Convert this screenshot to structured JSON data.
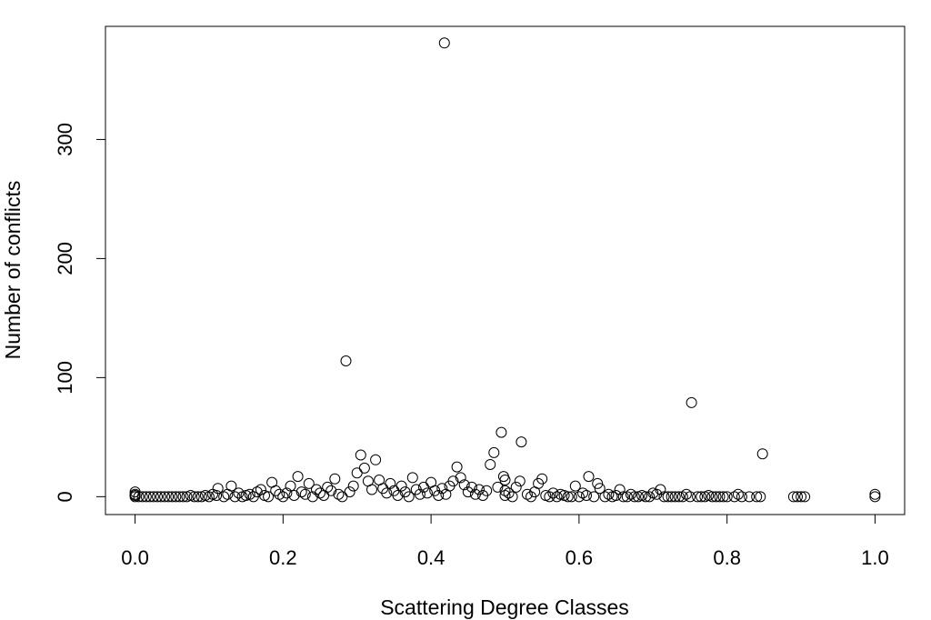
{
  "chart_data": {
    "type": "scatter",
    "title": "",
    "xlabel": "Scattering Degree Classes",
    "ylabel": "Number of conflicts",
    "xlim": [
      -0.04,
      1.04
    ],
    "ylim": [
      -15,
      395
    ],
    "x_ticks": [
      0.0,
      0.2,
      0.4,
      0.6,
      0.8,
      1.0
    ],
    "x_tick_labels": [
      "0.0",
      "0.2",
      "0.4",
      "0.6",
      "0.8",
      "1.0"
    ],
    "y_ticks": [
      0,
      100,
      200,
      300
    ],
    "y_tick_labels": [
      "0",
      "100",
      "200",
      "300"
    ],
    "grid": false,
    "legend": "none",
    "marker": "open-circle",
    "series": [
      {
        "points": [
          [
            0.0,
            0
          ],
          [
            0.0,
            1
          ],
          [
            0.0,
            2
          ],
          [
            0.0,
            4
          ],
          [
            0.005,
            0
          ],
          [
            0.01,
            0
          ],
          [
            0.015,
            0
          ],
          [
            0.02,
            0
          ],
          [
            0.025,
            0
          ],
          [
            0.03,
            0
          ],
          [
            0.035,
            0
          ],
          [
            0.04,
            0
          ],
          [
            0.045,
            0
          ],
          [
            0.05,
            0
          ],
          [
            0.055,
            0
          ],
          [
            0.06,
            0
          ],
          [
            0.065,
            0
          ],
          [
            0.07,
            0
          ],
          [
            0.075,
            1
          ],
          [
            0.08,
            0
          ],
          [
            0.085,
            0
          ],
          [
            0.09,
            0
          ],
          [
            0.095,
            1
          ],
          [
            0.1,
            0
          ],
          [
            0.105,
            2
          ],
          [
            0.11,
            1
          ],
          [
            0.112,
            7
          ],
          [
            0.12,
            0
          ],
          [
            0.125,
            2
          ],
          [
            0.13,
            9
          ],
          [
            0.135,
            0
          ],
          [
            0.14,
            3
          ],
          [
            0.145,
            0
          ],
          [
            0.15,
            1
          ],
          [
            0.155,
            2
          ],
          [
            0.16,
            0
          ],
          [
            0.165,
            4
          ],
          [
            0.17,
            6
          ],
          [
            0.175,
            1
          ],
          [
            0.18,
            0
          ],
          [
            0.185,
            12
          ],
          [
            0.19,
            5
          ],
          [
            0.195,
            2
          ],
          [
            0.2,
            0
          ],
          [
            0.205,
            3
          ],
          [
            0.21,
            9
          ],
          [
            0.215,
            1
          ],
          [
            0.22,
            17
          ],
          [
            0.225,
            4
          ],
          [
            0.23,
            2
          ],
          [
            0.235,
            11
          ],
          [
            0.24,
            0
          ],
          [
            0.245,
            6
          ],
          [
            0.25,
            3
          ],
          [
            0.255,
            1
          ],
          [
            0.26,
            8
          ],
          [
            0.265,
            5
          ],
          [
            0.27,
            15
          ],
          [
            0.275,
            2
          ],
          [
            0.28,
            0
          ],
          [
            0.285,
            114
          ],
          [
            0.29,
            4
          ],
          [
            0.295,
            9
          ],
          [
            0.3,
            20
          ],
          [
            0.305,
            35
          ],
          [
            0.31,
            24
          ],
          [
            0.315,
            13
          ],
          [
            0.32,
            6
          ],
          [
            0.325,
            31
          ],
          [
            0.33,
            14
          ],
          [
            0.335,
            7
          ],
          [
            0.34,
            3
          ],
          [
            0.345,
            11
          ],
          [
            0.35,
            5
          ],
          [
            0.355,
            1
          ],
          [
            0.36,
            9
          ],
          [
            0.365,
            4
          ],
          [
            0.37,
            0
          ],
          [
            0.375,
            16
          ],
          [
            0.38,
            6
          ],
          [
            0.385,
            2
          ],
          [
            0.39,
            8
          ],
          [
            0.395,
            3
          ],
          [
            0.4,
            12
          ],
          [
            0.405,
            5
          ],
          [
            0.41,
            1
          ],
          [
            0.415,
            7
          ],
          [
            0.418,
            381
          ],
          [
            0.42,
            2
          ],
          [
            0.425,
            9
          ],
          [
            0.43,
            13
          ],
          [
            0.435,
            25
          ],
          [
            0.44,
            16
          ],
          [
            0.445,
            10
          ],
          [
            0.45,
            4
          ],
          [
            0.455,
            8
          ],
          [
            0.46,
            2
          ],
          [
            0.465,
            6
          ],
          [
            0.47,
            1
          ],
          [
            0.475,
            5
          ],
          [
            0.48,
            27
          ],
          [
            0.485,
            37
          ],
          [
            0.49,
            8
          ],
          [
            0.495,
            54
          ],
          [
            0.498,
            17
          ],
          [
            0.5,
            14
          ],
          [
            0.5,
            5
          ],
          [
            0.5,
            1
          ],
          [
            0.505,
            3
          ],
          [
            0.51,
            0
          ],
          [
            0.515,
            8
          ],
          [
            0.52,
            13
          ],
          [
            0.522,
            46
          ],
          [
            0.53,
            2
          ],
          [
            0.535,
            0
          ],
          [
            0.54,
            4
          ],
          [
            0.545,
            11
          ],
          [
            0.55,
            15
          ],
          [
            0.555,
            1
          ],
          [
            0.56,
            0
          ],
          [
            0.565,
            3
          ],
          [
            0.57,
            0
          ],
          [
            0.575,
            2
          ],
          [
            0.58,
            1
          ],
          [
            0.585,
            0
          ],
          [
            0.59,
            0
          ],
          [
            0.595,
            9
          ],
          [
            0.6,
            0
          ],
          [
            0.605,
            3
          ],
          [
            0.61,
            1
          ],
          [
            0.613,
            17
          ],
          [
            0.62,
            0
          ],
          [
            0.625,
            11
          ],
          [
            0.628,
            7
          ],
          [
            0.635,
            0
          ],
          [
            0.64,
            2
          ],
          [
            0.645,
            0
          ],
          [
            0.65,
            1
          ],
          [
            0.655,
            6
          ],
          [
            0.66,
            0
          ],
          [
            0.665,
            0
          ],
          [
            0.67,
            2
          ],
          [
            0.675,
            0
          ],
          [
            0.68,
            0
          ],
          [
            0.685,
            1
          ],
          [
            0.69,
            0
          ],
          [
            0.695,
            0
          ],
          [
            0.7,
            3
          ],
          [
            0.705,
            2
          ],
          [
            0.71,
            6
          ],
          [
            0.715,
            0
          ],
          [
            0.72,
            0
          ],
          [
            0.725,
            0
          ],
          [
            0.73,
            0
          ],
          [
            0.735,
            0
          ],
          [
            0.74,
            0
          ],
          [
            0.745,
            2
          ],
          [
            0.75,
            0
          ],
          [
            0.752,
            79
          ],
          [
            0.76,
            0
          ],
          [
            0.765,
            0
          ],
          [
            0.77,
            0
          ],
          [
            0.775,
            1
          ],
          [
            0.78,
            0
          ],
          [
            0.785,
            0
          ],
          [
            0.79,
            0
          ],
          [
            0.795,
            0
          ],
          [
            0.8,
            0
          ],
          [
            0.81,
            0
          ],
          [
            0.815,
            2
          ],
          [
            0.82,
            0
          ],
          [
            0.83,
            0
          ],
          [
            0.84,
            0
          ],
          [
            0.845,
            0
          ],
          [
            0.848,
            36
          ],
          [
            0.89,
            0
          ],
          [
            0.895,
            0
          ],
          [
            0.9,
            0
          ],
          [
            0.905,
            0
          ],
          [
            1.0,
            0
          ],
          [
            1.0,
            2
          ]
        ]
      }
    ]
  }
}
